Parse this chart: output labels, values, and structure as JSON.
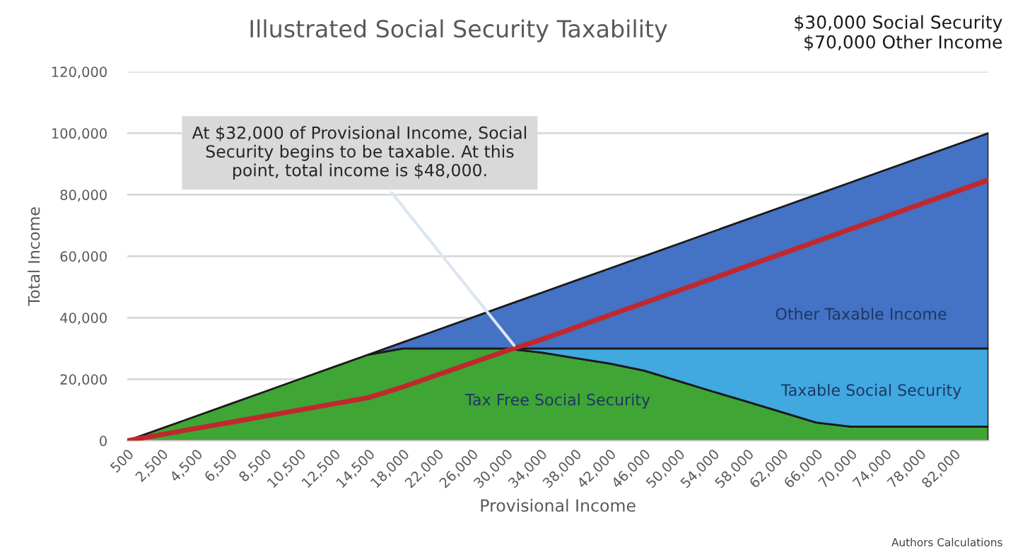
{
  "chart_data": {
    "type": "area",
    "stacked": true,
    "title": "Illustrated Social Security Taxability",
    "xlabel": "Provisional Income",
    "ylabel": "Total Income",
    "categories": [
      "500",
      "2,500",
      "4,500",
      "6,500",
      "8,500",
      "10,500",
      "12,500",
      "14,500",
      "18,000",
      "22,000",
      "26,000",
      "30,000",
      "34,000",
      "38,000",
      "42,000",
      "46,000",
      "50,000",
      "54,000",
      "58,000",
      "62,000",
      "66,000",
      "70,000",
      "74,000",
      "78,000",
      "82,000",
      null
    ],
    "series": [
      {
        "name": "Tax Free Social Security",
        "color": "#3fa535",
        "values": [
          0,
          4000,
          8000,
          12000,
          16000,
          20000,
          24000,
          28000,
          30000,
          30000,
          30000,
          30000,
          28700,
          26900,
          25100,
          22800,
          19400,
          16000,
          12700,
          9300,
          5900,
          4600,
          4600,
          4600,
          4600,
          4600
        ]
      },
      {
        "name": "Taxable Social Security",
        "color": "#41a8e0",
        "values": [
          null,
          null,
          null,
          null,
          null,
          null,
          null,
          null,
          null,
          null,
          null,
          0,
          1300,
          3100,
          4900,
          7200,
          10600,
          14000,
          17300,
          20700,
          24100,
          25400,
          25400,
          25400,
          25400,
          25400
        ]
      },
      {
        "name": "Other Taxable Income",
        "color": "#4472c4",
        "values": [
          null,
          null,
          null,
          null,
          null,
          null,
          null,
          0,
          2000,
          6000,
          10000,
          14000,
          18000,
          22000,
          26000,
          30000,
          34000,
          38000,
          42000,
          46000,
          50000,
          54000,
          58000,
          62000,
          66000,
          70000
        ]
      },
      {
        "type": "line",
        "color": "#c0282d",
        "values": [
          0,
          2000,
          4000,
          6000,
          8000,
          10000,
          12000,
          14000,
          17500,
          21400,
          25300,
          29200,
          32800,
          36800,
          40800,
          44800,
          48800,
          52800,
          56800,
          60800,
          64800,
          68800,
          72800,
          76800,
          80800,
          84800
        ]
      }
    ],
    "ylim": [
      0,
      120000
    ],
    "yticks": [
      0,
      {
        "value": 20000,
        "label": "20,000"
      },
      {
        "value": 40000,
        "label": "40,000"
      },
      {
        "value": 60000,
        "label": "60,000"
      },
      {
        "value": 80000,
        "label": "80,000"
      },
      {
        "value": 100000,
        "label": "100,000"
      },
      {
        "value": 120000,
        "label": "120,000"
      }
    ],
    "grid": "y",
    "annotations": [
      {
        "text": "At $32,000 of Provisional Income, Social\nSecurity begins to be taxable. At this\npoint, total income is $48,000.",
        "x": "30,000",
        "y": 30000
      },
      "$30,000 Social Security\n$70,000 Other Income",
      "Authors Calculations"
    ]
  }
}
